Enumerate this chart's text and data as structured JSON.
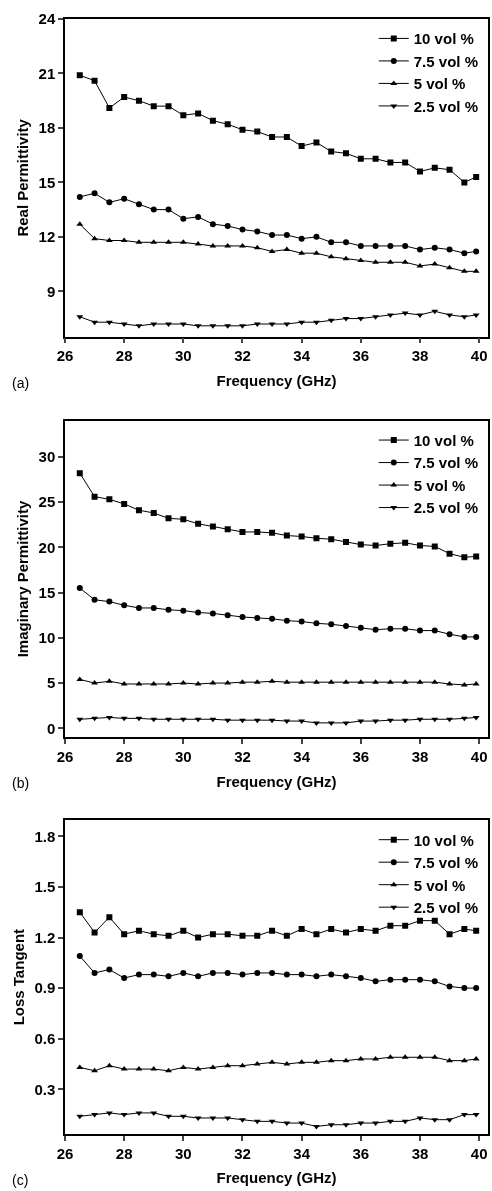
{
  "chart_data": [
    {
      "type": "line",
      "xlabel": "Frequency (GHz)",
      "ylabel": "Real Permittivity",
      "annotations": [
        "(a)"
      ],
      "legend": "top right",
      "grid": false,
      "line_style": "solid",
      "xlim": [
        26,
        40.3
      ],
      "xticks": [
        26,
        28,
        30,
        32,
        34,
        36,
        38,
        40
      ],
      "ylim": [
        6.5,
        24
      ],
      "yticks": [
        9,
        12,
        15,
        18,
        21,
        24
      ],
      "x": [
        26.5,
        27.0,
        27.5,
        28.0,
        28.5,
        29.0,
        29.5,
        30.0,
        30.5,
        31.0,
        31.5,
        32.0,
        32.5,
        33.0,
        33.5,
        34.0,
        34.5,
        35.0,
        35.5,
        36.0,
        36.5,
        37.0,
        37.5,
        38.0,
        38.5,
        39.0,
        39.5,
        39.9
      ],
      "series": [
        {
          "name": "10 vol %",
          "color": "#000000",
          "marker": "square",
          "values": [
            20.9,
            20.6,
            19.1,
            19.7,
            19.5,
            19.2,
            19.2,
            18.7,
            18.8,
            18.4,
            18.2,
            17.9,
            17.8,
            17.5,
            17.5,
            17.0,
            17.2,
            16.7,
            16.6,
            16.3,
            16.3,
            16.1,
            16.1,
            15.6,
            15.8,
            15.7,
            15.0,
            15.3
          ]
        },
        {
          "name": "7.5 vol %",
          "color": "#000000",
          "marker": "circle",
          "values": [
            14.2,
            14.4,
            13.9,
            14.1,
            13.8,
            13.5,
            13.5,
            13.0,
            13.1,
            12.7,
            12.6,
            12.4,
            12.3,
            12.1,
            12.1,
            11.9,
            12.0,
            11.7,
            11.7,
            11.5,
            11.5,
            11.5,
            11.5,
            11.3,
            11.4,
            11.3,
            11.1,
            11.2
          ]
        },
        {
          "name": "5 vol %",
          "color": "#000000",
          "marker": "triangle",
          "values": [
            12.7,
            11.9,
            11.8,
            11.8,
            11.7,
            11.7,
            11.7,
            11.7,
            11.6,
            11.5,
            11.5,
            11.5,
            11.4,
            11.2,
            11.3,
            11.1,
            11.1,
            10.9,
            10.8,
            10.7,
            10.6,
            10.6,
            10.6,
            10.4,
            10.5,
            10.3,
            10.1,
            10.1
          ]
        },
        {
          "name": "2.5 vol %",
          "color": "#000000",
          "marker": "triangle-down",
          "values": [
            7.6,
            7.3,
            7.3,
            7.2,
            7.1,
            7.2,
            7.2,
            7.2,
            7.1,
            7.1,
            7.1,
            7.1,
            7.2,
            7.2,
            7.2,
            7.3,
            7.3,
            7.4,
            7.5,
            7.5,
            7.6,
            7.7,
            7.8,
            7.7,
            7.9,
            7.7,
            7.6,
            7.7
          ]
        }
      ]
    },
    {
      "type": "line",
      "xlabel": "Frequency (GHz)",
      "ylabel": "Imaginary Permittivity",
      "annotations": [
        "(b)"
      ],
      "legend": "top right",
      "grid": false,
      "line_style": "solid",
      "xlim": [
        26,
        40.3
      ],
      "xticks": [
        26,
        28,
        30,
        32,
        34,
        36,
        38,
        40
      ],
      "ylim": [
        -1,
        34
      ],
      "yticks": [
        0,
        5,
        10,
        15,
        20,
        25,
        30
      ],
      "x": [
        26.5,
        27.0,
        27.5,
        28.0,
        28.5,
        29.0,
        29.5,
        30.0,
        30.5,
        31.0,
        31.5,
        32.0,
        32.5,
        33.0,
        33.5,
        34.0,
        34.5,
        35.0,
        35.5,
        36.0,
        36.5,
        37.0,
        37.5,
        38.0,
        38.5,
        39.0,
        39.5,
        39.9
      ],
      "series": [
        {
          "name": "10 vol %",
          "color": "#000000",
          "marker": "square",
          "values": [
            28.2,
            25.6,
            25.3,
            24.8,
            24.1,
            23.8,
            23.2,
            23.1,
            22.6,
            22.3,
            22.0,
            21.7,
            21.7,
            21.6,
            21.3,
            21.2,
            21.0,
            20.9,
            20.6,
            20.3,
            20.2,
            20.4,
            20.5,
            20.2,
            20.1,
            19.3,
            18.9,
            19.0
          ]
        },
        {
          "name": "7.5 vol %",
          "color": "#000000",
          "marker": "circle",
          "values": [
            15.5,
            14.2,
            14.0,
            13.6,
            13.3,
            13.3,
            13.1,
            13.0,
            12.8,
            12.7,
            12.5,
            12.3,
            12.2,
            12.1,
            11.9,
            11.8,
            11.6,
            11.5,
            11.3,
            11.1,
            10.9,
            11.0,
            11.0,
            10.8,
            10.8,
            10.4,
            10.1,
            10.1
          ]
        },
        {
          "name": "5 vol %",
          "color": "#000000",
          "marker": "triangle",
          "values": [
            5.4,
            5.0,
            5.2,
            4.9,
            4.9,
            4.9,
            4.9,
            5.0,
            4.9,
            5.0,
            5.0,
            5.1,
            5.1,
            5.2,
            5.1,
            5.1,
            5.1,
            5.1,
            5.1,
            5.1,
            5.1,
            5.1,
            5.1,
            5.1,
            5.1,
            4.9,
            4.8,
            4.9
          ]
        },
        {
          "name": "2.5 vol %",
          "color": "#000000",
          "marker": "triangle-down",
          "values": [
            1.0,
            1.1,
            1.2,
            1.1,
            1.1,
            1.0,
            1.0,
            1.0,
            1.0,
            1.0,
            0.9,
            0.9,
            0.9,
            0.9,
            0.8,
            0.8,
            0.6,
            0.6,
            0.6,
            0.8,
            0.8,
            0.9,
            0.9,
            1.0,
            1.0,
            1.0,
            1.1,
            1.2
          ]
        }
      ]
    },
    {
      "type": "line",
      "xlabel": "Frequency (GHz)",
      "ylabel": "Loss Tangent",
      "annotations": [
        "(c)"
      ],
      "legend": "top right",
      "grid": false,
      "line_style": "solid",
      "xlim": [
        26,
        40.3
      ],
      "xticks": [
        26,
        28,
        30,
        32,
        34,
        36,
        38,
        40
      ],
      "ylim": [
        0.035,
        1.895
      ],
      "yticks": [
        {
          "value": 0.3,
          "label": "0.3"
        },
        {
          "value": 0.6,
          "label": "0.6"
        },
        {
          "value": 0.9,
          "label": "0.9"
        },
        {
          "value": 1.2,
          "label": "1.2"
        },
        {
          "value": 1.5,
          "label": "1.5"
        },
        {
          "value": 1.8,
          "label": "1.8"
        }
      ],
      "x": [
        26.5,
        27.0,
        27.5,
        28.0,
        28.5,
        29.0,
        29.5,
        30.0,
        30.5,
        31.0,
        31.5,
        32.0,
        32.5,
        33.0,
        33.5,
        34.0,
        34.5,
        35.0,
        35.5,
        36.0,
        36.5,
        37.0,
        37.5,
        38.0,
        38.5,
        39.0,
        39.5,
        39.9
      ],
      "series": [
        {
          "name": "10 vol %",
          "color": "#000000",
          "marker": "square",
          "values": [
            1.35,
            1.23,
            1.32,
            1.22,
            1.24,
            1.22,
            1.21,
            1.24,
            1.2,
            1.22,
            1.22,
            1.21,
            1.21,
            1.24,
            1.21,
            1.25,
            1.22,
            1.25,
            1.23,
            1.25,
            1.24,
            1.27,
            1.27,
            1.3,
            1.3,
            1.22,
            1.25,
            1.24
          ]
        },
        {
          "name": "7.5 vol %",
          "color": "#000000",
          "marker": "circle",
          "values": [
            1.09,
            0.99,
            1.01,
            0.96,
            0.98,
            0.98,
            0.97,
            0.99,
            0.97,
            0.99,
            0.99,
            0.98,
            0.99,
            0.99,
            0.98,
            0.98,
            0.97,
            0.98,
            0.97,
            0.96,
            0.94,
            0.95,
            0.95,
            0.95,
            0.94,
            0.91,
            0.9,
            0.9
          ]
        },
        {
          "name": "5 vol %",
          "color": "#000000",
          "marker": "triangle",
          "values": [
            0.43,
            0.41,
            0.44,
            0.42,
            0.42,
            0.42,
            0.41,
            0.43,
            0.42,
            0.43,
            0.44,
            0.44,
            0.45,
            0.46,
            0.45,
            0.46,
            0.46,
            0.47,
            0.47,
            0.48,
            0.48,
            0.49,
            0.49,
            0.49,
            0.49,
            0.47,
            0.47,
            0.48
          ]
        },
        {
          "name": "2.5 vol %",
          "color": "#000000",
          "marker": "triangle-down",
          "values": [
            0.14,
            0.15,
            0.16,
            0.15,
            0.16,
            0.16,
            0.14,
            0.14,
            0.13,
            0.13,
            0.13,
            0.12,
            0.11,
            0.11,
            0.1,
            0.1,
            0.08,
            0.09,
            0.09,
            0.1,
            0.1,
            0.11,
            0.11,
            0.13,
            0.12,
            0.12,
            0.15,
            0.15
          ]
        }
      ]
    }
  ]
}
